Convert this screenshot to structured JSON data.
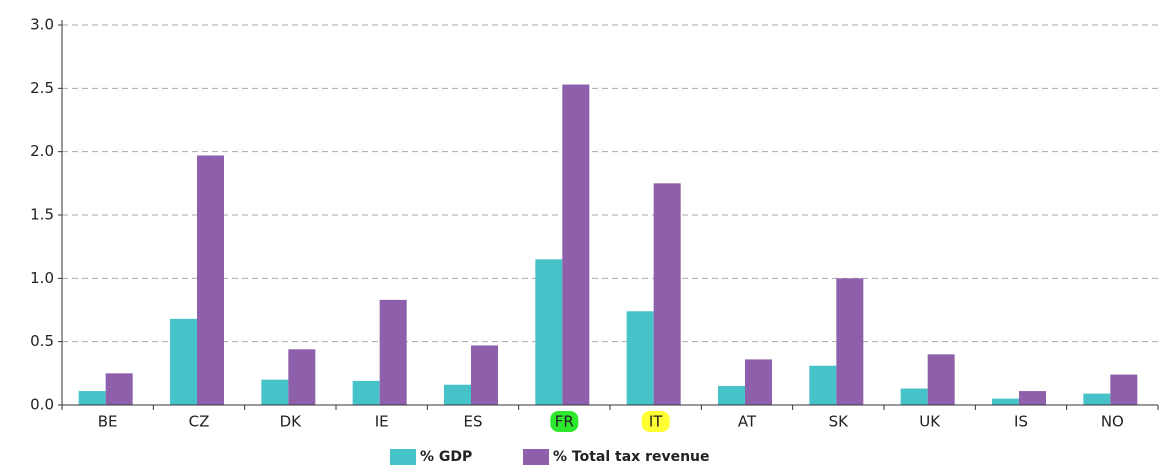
{
  "chart_data": {
    "type": "bar",
    "categories": [
      "BE",
      "CZ",
      "DK",
      "IE",
      "ES",
      "FR",
      "IT",
      "AT",
      "SK",
      "UK",
      "IS",
      "NO"
    ],
    "series": [
      {
        "name": "% GDP",
        "color": "#45c3c9",
        "values": [
          0.11,
          0.68,
          0.2,
          0.19,
          0.16,
          1.15,
          0.74,
          0.15,
          0.31,
          0.13,
          0.05,
          0.09
        ]
      },
      {
        "name": "% Total tax revenue",
        "color": "#8e60ab",
        "values": [
          0.25,
          1.97,
          0.44,
          0.83,
          0.47,
          2.53,
          1.75,
          0.36,
          1.0,
          0.4,
          0.11,
          0.24
        ]
      }
    ],
    "category_highlights": [
      null,
      null,
      null,
      null,
      null,
      "#2ee82e",
      "#ffff33",
      null,
      null,
      null,
      null,
      null
    ],
    "ylim": [
      0,
      3
    ],
    "yticks": [
      {
        "value": 0,
        "label": "0.0"
      },
      0.5,
      {
        "value": 1,
        "label": "1.0"
      },
      1.5,
      {
        "value": 2,
        "label": "2.0"
      },
      2.5,
      {
        "value": 3,
        "label": "3.0"
      }
    ],
    "grid": true,
    "legend": "bottom"
  }
}
